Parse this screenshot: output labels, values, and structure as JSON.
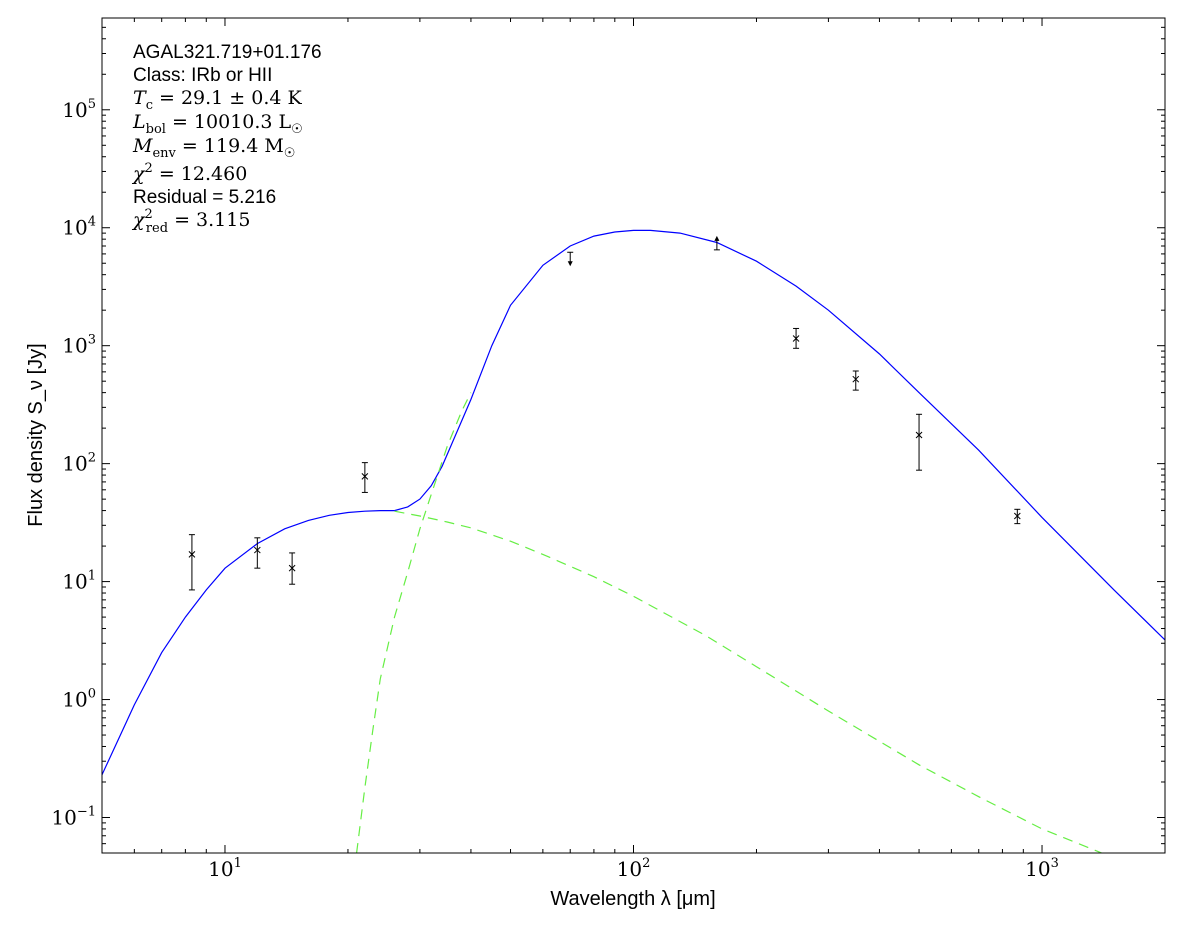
{
  "chart_data": {
    "type": "line",
    "xscale": "log",
    "yscale": "log",
    "xlim": [
      5,
      2000
    ],
    "ylim": [
      0.05,
      600000
    ],
    "grid": false,
    "xlabel": "Wavelength λ [μm]",
    "ylabel": "Flux density S_ν [Jy]",
    "x_major_ticks": [
      {
        "value": 10,
        "base": "10",
        "exp": "1"
      },
      {
        "value": 100,
        "base": "10",
        "exp": "2"
      },
      {
        "value": 1000,
        "base": "10",
        "exp": "3"
      }
    ],
    "y_major_ticks": [
      {
        "value": 0.1,
        "base": "10",
        "exp": "−1"
      },
      {
        "value": 1,
        "base": "10",
        "exp": "0"
      },
      {
        "value": 10,
        "base": "10",
        "exp": "1"
      },
      {
        "value": 100,
        "base": "10",
        "exp": "2"
      },
      {
        "value": 1000,
        "base": "10",
        "exp": "3"
      },
      {
        "value": 10000,
        "base": "10",
        "exp": "4"
      },
      {
        "value": 100000,
        "base": "10",
        "exp": "5"
      }
    ],
    "annotations": {
      "source": "AGAL321.719+01.176",
      "class": "Class: IRb or HII",
      "tc": {
        "sym": "T",
        "sub": "c",
        "text": " = 29.1 ± 0.4 K"
      },
      "lbol": {
        "sym": "L",
        "sub": "bol",
        "text": " = 10010.3 L",
        "unit_sub": "☉"
      },
      "menv": {
        "sym": "M",
        "sub": "env",
        "text": " = 119.4 M",
        "unit_sub": "☉"
      },
      "chi2": {
        "sym": "χ",
        "sup": "2",
        "text": " = 12.460"
      },
      "residual": "Residual = 5.216",
      "chi2red": {
        "sym": "χ",
        "sup": "2",
        "sub": "red",
        "text": " = 3.115"
      }
    },
    "series": [
      {
        "kind": "total-model",
        "color": "#0000ff",
        "style": "solid",
        "x": [
          5,
          6,
          7,
          8,
          9,
          10,
          12,
          14,
          16,
          18,
          20,
          22,
          24,
          26,
          28,
          30,
          32,
          34,
          36,
          40,
          45,
          50,
          60,
          70,
          80,
          90,
          100,
          110,
          130,
          160,
          200,
          250,
          300,
          400,
          500,
          700,
          1000,
          1500,
          2000
        ],
        "y": [
          0.23,
          0.9,
          2.5,
          5.0,
          8.5,
          13,
          21,
          28,
          33,
          36.5,
          38.5,
          39.5,
          40,
          40,
          43,
          50,
          65,
          95,
          150,
          350,
          1000,
          2200,
          4800,
          7000,
          8500,
          9200,
          9500,
          9500,
          9000,
          7500,
          5200,
          3200,
          2000,
          850,
          400,
          130,
          35,
          8.5,
          3.2
        ]
      },
      {
        "kind": "warm-component",
        "color": "#66ee44",
        "style": "dashed",
        "x": [
          26,
          30,
          35,
          40,
          50,
          60,
          80,
          100,
          150,
          200,
          300,
          500,
          700,
          1000,
          1400
        ],
        "y": [
          39.5,
          36,
          32,
          28.5,
          22,
          17,
          11,
          7.5,
          3.5,
          1.9,
          0.8,
          0.28,
          0.15,
          0.08,
          0.05
        ]
      },
      {
        "kind": "cold-component",
        "color": "#66ee44",
        "style": "dashed",
        "x": [
          21,
          22,
          23,
          24,
          26,
          28,
          30,
          32,
          35,
          38,
          40
        ],
        "y": [
          0.05,
          0.18,
          0.55,
          1.5,
          5,
          12,
          28,
          55,
          140,
          280,
          400
        ]
      }
    ],
    "points": [
      {
        "x": 8.3,
        "y": 17,
        "lo": 8.5,
        "hi": 25,
        "kind": "measurement"
      },
      {
        "x": 12,
        "y": 18.5,
        "lo": 13,
        "hi": 23.5,
        "kind": "measurement"
      },
      {
        "x": 14.6,
        "y": 13,
        "lo": 9.5,
        "hi": 17.5,
        "kind": "measurement"
      },
      {
        "x": 22,
        "y": 78,
        "lo": 57,
        "hi": 102,
        "kind": "measurement"
      },
      {
        "x": 70,
        "y": 5300,
        "kind": "upper-limit"
      },
      {
        "x": 160,
        "y": 7300,
        "kind": "lower-limit"
      },
      {
        "x": 250,
        "y": 1150,
        "lo": 950,
        "hi": 1400,
        "kind": "measurement"
      },
      {
        "x": 350,
        "y": 520,
        "lo": 420,
        "hi": 610,
        "kind": "measurement"
      },
      {
        "x": 500,
        "y": 175,
        "lo": 88,
        "hi": 262,
        "kind": "measurement"
      },
      {
        "x": 870,
        "y": 36,
        "lo": 31,
        "hi": 41,
        "kind": "measurement"
      }
    ]
  }
}
